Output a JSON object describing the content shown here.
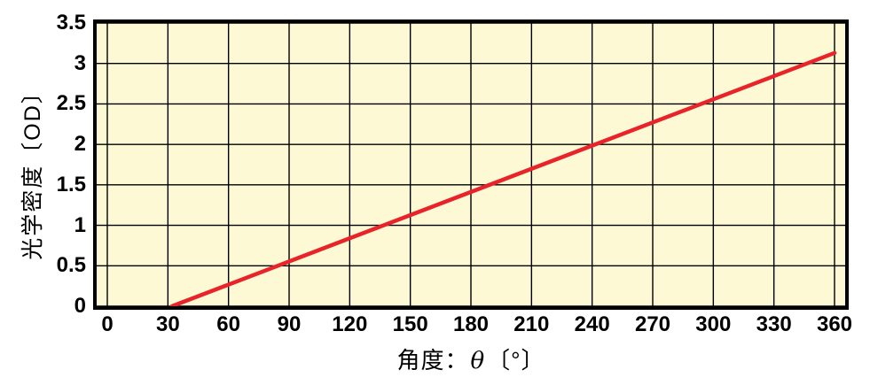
{
  "page": {
    "background": "#ffffff"
  },
  "chart_data": {
    "type": "line",
    "title": "",
    "xlabel": "角度：θ〔°〕",
    "xlabel_parts": {
      "prefix": "角度：",
      "symbol": "θ",
      "suffix": "〔°〕"
    },
    "ylabel": "光学密度〔OD〕",
    "x_ticks": [
      0,
      30,
      60,
      90,
      120,
      150,
      180,
      210,
      240,
      270,
      300,
      330,
      360
    ],
    "x_tick_labels": [
      "0",
      "30",
      "60",
      "90",
      "120",
      "150",
      "180",
      "210",
      "240",
      "270",
      "300",
      "330",
      "360"
    ],
    "y_ticks": [
      0,
      0.5,
      1,
      1.5,
      2,
      2.5,
      3,
      3.5
    ],
    "y_tick_labels": [
      "0",
      "0.5",
      "1",
      "1.5",
      "2",
      "2.5",
      "3",
      "3.5"
    ],
    "xlim": [
      0,
      360
    ],
    "ylim": [
      0,
      3.5
    ],
    "grid": true,
    "legend": "none",
    "plot_background": "#fcf9d4",
    "grid_color": "#000000",
    "border_color": "#000000",
    "series": [
      {
        "name": "optical-density",
        "color": "#e8232a",
        "points": [
          [
            32,
            0
          ],
          [
            360,
            3.13
          ]
        ]
      }
    ]
  }
}
